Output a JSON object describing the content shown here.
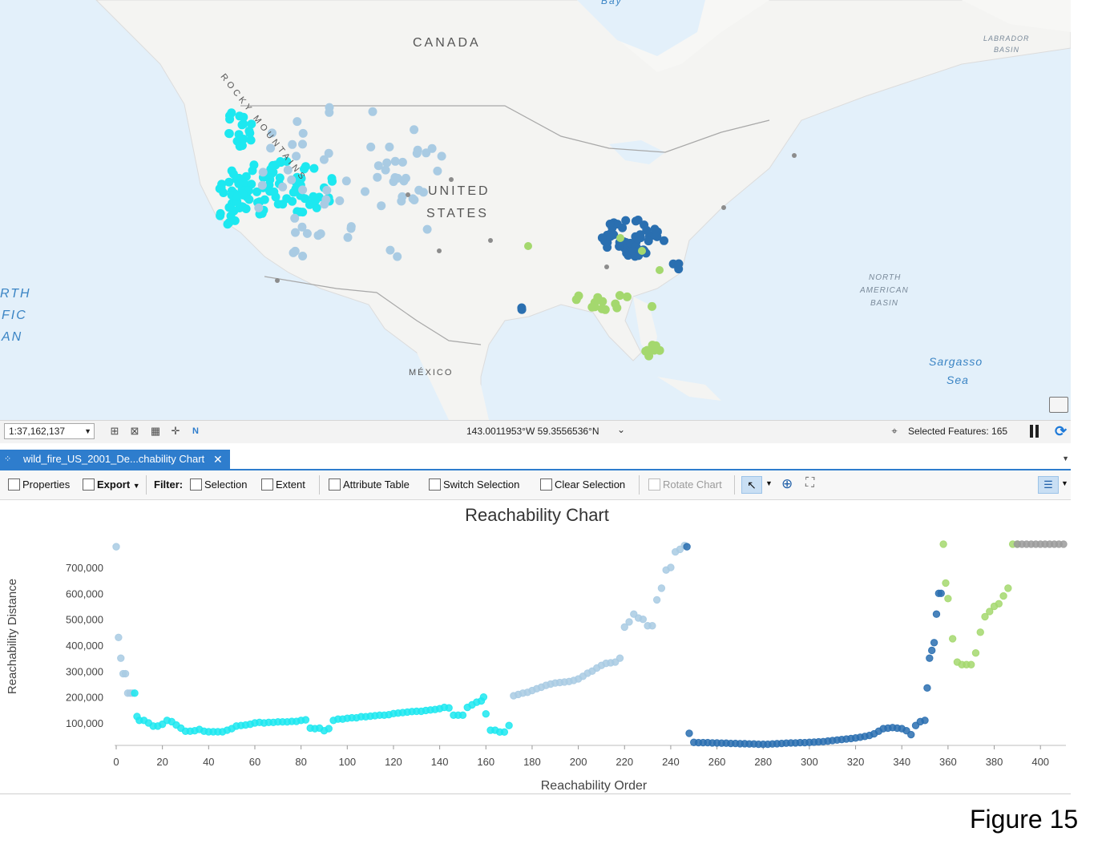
{
  "map": {
    "labels": {
      "bay": "Bay",
      "canada": "CANADA",
      "rocky_mountains": "ROCKY MOUNTAINS",
      "united": "UNITED",
      "states": "STATES",
      "mexico": "MÉXICO",
      "labrador": "LABRADOR",
      "basin": "BASIN",
      "north": "NORTH",
      "american": "AMERICAN",
      "basin2": "BASIN",
      "pacific_1": "RTH",
      "pacific_2": "FIC",
      "pacific_3": "AN",
      "sargasso": "Sargasso",
      "sea": "Sea"
    },
    "cluster_colors": {
      "cyan": "#1de8f0",
      "light_blue": "#a9cbe3",
      "dark_blue": "#2a6fb0",
      "light_green": "#a4d86e",
      "grey": "#8c8c8c"
    }
  },
  "status_bar": {
    "scale": "1:37,162,137",
    "coordinates": "143.0011953°W 59.3556536°N",
    "selected_features": "Selected Features: 165"
  },
  "tab": {
    "title": "wild_fire_US_2001_De...chability Chart"
  },
  "toolbar": {
    "properties": "Properties",
    "export": "Export",
    "filter": "Filter:",
    "selection": "Selection",
    "extent": "Extent",
    "attribute_table": "Attribute Table",
    "switch_selection": "Switch Selection",
    "clear_selection": "Clear Selection",
    "rotate_chart": "Rotate Chart"
  },
  "chart_data": {
    "type": "scatter",
    "title": "Reachability Chart",
    "xlabel": "Reachability Order",
    "ylabel": "Reachability Distance",
    "xlim": [
      0,
      410
    ],
    "ylim": [
      0,
      800000
    ],
    "x_ticks": [
      0,
      20,
      40,
      60,
      80,
      100,
      120,
      140,
      160,
      180,
      200,
      220,
      240,
      260,
      280,
      300,
      320,
      340,
      360,
      380,
      400
    ],
    "y_ticks": [
      100000,
      200000,
      300000,
      400000,
      500000,
      600000,
      700000
    ],
    "y_tick_labels": [
      "100,000",
      "200,000",
      "300,000",
      "400,000",
      "500,000",
      "600,000",
      "700,000"
    ],
    "grid": false,
    "series": [
      {
        "color": "#a9cbe3",
        "x": [
          0,
          1,
          2,
          3,
          4,
          5,
          6,
          7
        ],
        "y": [
          780000,
          430000,
          350000,
          290000,
          290000,
          215000,
          215000,
          215000
        ]
      },
      {
        "color": "#1de8f0",
        "x": [
          8,
          9,
          10,
          12,
          14,
          16,
          18,
          20,
          22,
          24,
          26,
          28,
          30,
          32,
          34,
          36,
          38,
          40,
          42,
          44,
          46,
          48,
          50,
          52,
          54,
          56,
          58,
          60,
          62,
          64,
          66,
          68,
          70,
          72,
          74,
          76,
          78,
          80,
          82,
          84,
          86,
          88,
          90,
          92,
          94,
          96,
          98,
          100,
          102,
          104,
          106,
          108,
          110,
          112,
          114,
          116,
          118,
          120,
          122,
          124,
          126,
          128,
          130,
          132,
          134,
          136,
          138,
          140,
          142,
          144,
          146,
          148,
          150,
          152,
          154,
          156,
          158,
          159,
          160,
          162,
          164,
          166,
          168,
          170
        ],
        "y": [
          215000,
          125000,
          110000,
          110000,
          100000,
          88000,
          88000,
          95000,
          110000,
          105000,
          92000,
          80000,
          68000,
          68000,
          70000,
          75000,
          68000,
          66000,
          66000,
          66000,
          66000,
          72000,
          78000,
          88000,
          90000,
          92000,
          95000,
          100000,
          102000,
          100000,
          102000,
          102000,
          104000,
          104000,
          104000,
          106000,
          106000,
          110000,
          112000,
          80000,
          78000,
          80000,
          70000,
          78000,
          110000,
          115000,
          115000,
          118000,
          120000,
          120000,
          124000,
          124000,
          126000,
          128000,
          130000,
          130000,
          132000,
          136000,
          138000,
          140000,
          142000,
          144000,
          145000,
          145000,
          148000,
          150000,
          152000,
          155000,
          160000,
          158000,
          130000,
          130000,
          130000,
          160000,
          170000,
          180000,
          185000,
          200000,
          135000,
          72000,
          72000,
          65000,
          65000,
          90000
        ]
      },
      {
        "color": "#a9cbe3",
        "x": [
          172,
          174,
          176,
          178,
          180,
          182,
          184,
          186,
          188,
          190,
          192,
          194,
          196,
          198,
          200,
          202,
          204,
          206,
          208,
          210,
          212,
          214,
          216,
          218,
          220,
          222,
          224,
          226,
          228,
          230,
          232,
          234,
          236,
          238,
          240,
          242,
          244,
          246
        ],
        "y": [
          205000,
          210000,
          215000,
          218000,
          225000,
          232000,
          238000,
          245000,
          250000,
          254000,
          256000,
          258000,
          260000,
          264000,
          270000,
          280000,
          292000,
          300000,
          312000,
          322000,
          330000,
          332000,
          335000,
          350000,
          470000,
          490000,
          520000,
          505000,
          500000,
          475000,
          475000,
          575000,
          620000,
          690000,
          700000,
          760000,
          770000,
          785000
        ]
      },
      {
        "color": "#2a6fb0",
        "x": [
          247,
          248,
          250,
          252,
          254,
          256,
          258,
          260,
          262,
          264,
          266,
          268,
          270,
          272,
          274,
          276,
          278,
          280,
          282,
          284,
          286,
          288,
          290,
          292,
          294,
          296,
          298,
          300,
          302,
          304,
          306,
          308,
          310,
          312,
          314,
          316,
          318,
          320,
          322,
          324,
          326,
          328,
          330,
          332,
          334,
          336,
          338,
          340,
          342,
          344,
          346,
          348,
          350,
          351,
          352,
          353,
          354,
          355,
          356,
          357
        ],
        "y": [
          780000,
          60000,
          25000,
          24000,
          24000,
          24000,
          23000,
          23000,
          22000,
          22000,
          21000,
          21000,
          20000,
          20000,
          19000,
          19000,
          18000,
          18000,
          18000,
          19000,
          20000,
          21000,
          22000,
          23000,
          23000,
          24000,
          24000,
          25000,
          26000,
          27000,
          28000,
          30000,
          32000,
          34000,
          36000,
          38000,
          40000,
          42000,
          45000,
          48000,
          52000,
          58000,
          68000,
          78000,
          80000,
          82000,
          80000,
          78000,
          70000,
          55000,
          90000,
          105000,
          110000,
          235000,
          350000,
          380000,
          410000,
          520000,
          600000,
          600000
        ]
      },
      {
        "color": "#a4d86e",
        "x": [
          358,
          359,
          360,
          362,
          364,
          366,
          368,
          370,
          372,
          374,
          376,
          378,
          380,
          382,
          384,
          386,
          388,
          390
        ],
        "y": [
          790000,
          640000,
          580000,
          425000,
          335000,
          325000,
          325000,
          325000,
          370000,
          450000,
          510000,
          530000,
          550000,
          560000,
          590000,
          620000,
          790000,
          790000
        ]
      },
      {
        "color": "#9b9b9b",
        "x": [
          390,
          392,
          394,
          396,
          398,
          400,
          402,
          404,
          406,
          408,
          410
        ],
        "y": [
          790000,
          790000,
          790000,
          790000,
          790000,
          790000,
          790000,
          790000,
          790000,
          790000,
          790000
        ]
      }
    ]
  },
  "figure_label": "Figure 15"
}
